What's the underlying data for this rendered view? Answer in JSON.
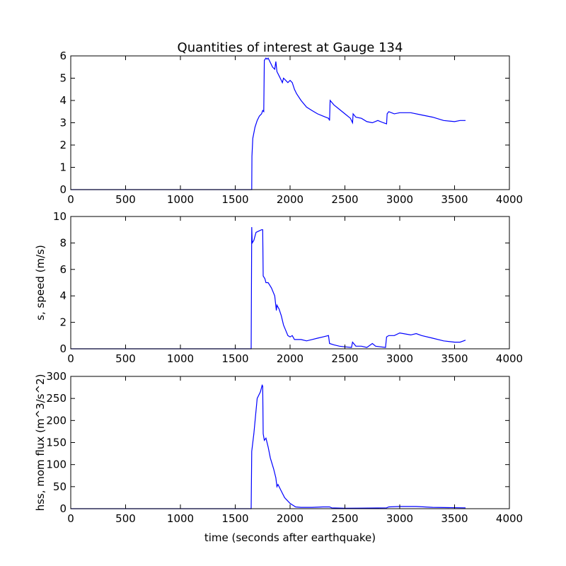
{
  "chart_data": [
    {
      "type": "line",
      "title": "Quantities of interest at Gauge 134",
      "color": "#0000ff",
      "x": [
        0,
        1650,
        1652,
        1660,
        1680,
        1700,
        1720,
        1740,
        1750,
        1760,
        1765,
        1780,
        1790,
        1800,
        1820,
        1840,
        1860,
        1870,
        1880,
        1900,
        1920,
        1930,
        1940,
        1960,
        1980,
        2000,
        2020,
        2040,
        2060,
        2100,
        2150,
        2200,
        2250,
        2300,
        2350,
        2360,
        2365,
        2400,
        2450,
        2500,
        2550,
        2570,
        2575,
        2600,
        2650,
        2700,
        2750,
        2800,
        2850,
        2880,
        2885,
        2900,
        2950,
        3000,
        3100,
        3200,
        3300,
        3400,
        3500,
        3550,
        3600
      ],
      "values": [
        0,
        0,
        1.5,
        2.3,
        2.8,
        3.1,
        3.3,
        3.4,
        3.55,
        3.5,
        5.8,
        5.9,
        5.85,
        5.9,
        5.7,
        5.5,
        5.4,
        5.75,
        5.3,
        5.1,
        4.9,
        4.8,
        5.0,
        4.9,
        4.8,
        4.9,
        4.8,
        4.5,
        4.3,
        4.0,
        3.7,
        3.55,
        3.4,
        3.3,
        3.2,
        3.1,
        4.0,
        3.8,
        3.6,
        3.4,
        3.2,
        3.0,
        3.4,
        3.25,
        3.2,
        3.05,
        3.0,
        3.1,
        3.0,
        2.95,
        3.4,
        3.5,
        3.4,
        3.45,
        3.45,
        3.35,
        3.25,
        3.1,
        3.05,
        3.1,
        3.1
      ],
      "xlim": [
        0,
        4000
      ],
      "xticks": [
        0,
        500,
        1000,
        1500,
        2000,
        2500,
        3000,
        3500,
        4000
      ],
      "ylim": [
        0,
        6
      ],
      "yticks": [
        0,
        1,
        2,
        3,
        4,
        5,
        6
      ]
    },
    {
      "type": "line",
      "ylabel": "s, speed (m/s)",
      "color": "#0000ff",
      "x": [
        0,
        1645,
        1650,
        1655,
        1670,
        1690,
        1740,
        1750,
        1755,
        1770,
        1780,
        1800,
        1830,
        1860,
        1875,
        1880,
        1900,
        1920,
        1940,
        1960,
        1980,
        2000,
        2020,
        2040,
        2100,
        2150,
        2200,
        2250,
        2300,
        2350,
        2360,
        2400,
        2450,
        2500,
        2560,
        2570,
        2600,
        2650,
        2700,
        2750,
        2780,
        2870,
        2880,
        2900,
        2950,
        3000,
        3100,
        3150,
        3200,
        3300,
        3400,
        3500,
        3550,
        3600
      ],
      "values": [
        0,
        0,
        9.2,
        8.0,
        8.2,
        8.8,
        9.0,
        9.0,
        5.5,
        5.3,
        5.0,
        5.0,
        4.6,
        4.0,
        2.9,
        3.3,
        3.0,
        2.5,
        1.8,
        1.4,
        1.0,
        0.9,
        1.0,
        0.7,
        0.7,
        0.6,
        0.7,
        0.8,
        0.9,
        1.0,
        0.4,
        0.3,
        0.2,
        0.15,
        0.1,
        0.5,
        0.2,
        0.2,
        0.1,
        0.4,
        0.2,
        0.1,
        0.9,
        1.0,
        1.0,
        1.2,
        1.05,
        1.15,
        1.0,
        0.8,
        0.6,
        0.5,
        0.5,
        0.65
      ],
      "xlim": [
        0,
        4000
      ],
      "xticks": [
        0,
        500,
        1000,
        1500,
        2000,
        2500,
        3000,
        3500,
        4000
      ],
      "ylim": [
        0,
        10
      ],
      "yticks": [
        0,
        2,
        4,
        6,
        8,
        10
      ]
    },
    {
      "type": "line",
      "ylabel": "hss, mom flux (m^3/s^2)",
      "xlabel": "time (seconds after earthquake)",
      "color": "#0000ff",
      "x": [
        0,
        1645,
        1650,
        1670,
        1700,
        1730,
        1745,
        1750,
        1755,
        1765,
        1780,
        1800,
        1820,
        1850,
        1870,
        1880,
        1890,
        1920,
        1950,
        2000,
        2050,
        2100,
        2200,
        2300,
        2360,
        2380,
        2500,
        2880,
        2900,
        3000,
        3150,
        3300,
        3600
      ],
      "values": [
        0,
        0,
        130,
        170,
        250,
        265,
        280,
        278,
        170,
        155,
        160,
        140,
        115,
        90,
        70,
        50,
        55,
        40,
        25,
        12,
        4,
        3,
        3,
        4,
        4,
        2,
        1,
        2,
        4,
        5,
        5,
        3,
        2
      ],
      "xlim": [
        0,
        4000
      ],
      "xticks": [
        0,
        500,
        1000,
        1500,
        2000,
        2500,
        3000,
        3500,
        4000
      ],
      "ylim": [
        0,
        300
      ],
      "yticks": [
        0,
        50,
        100,
        150,
        200,
        250,
        300
      ]
    }
  ]
}
